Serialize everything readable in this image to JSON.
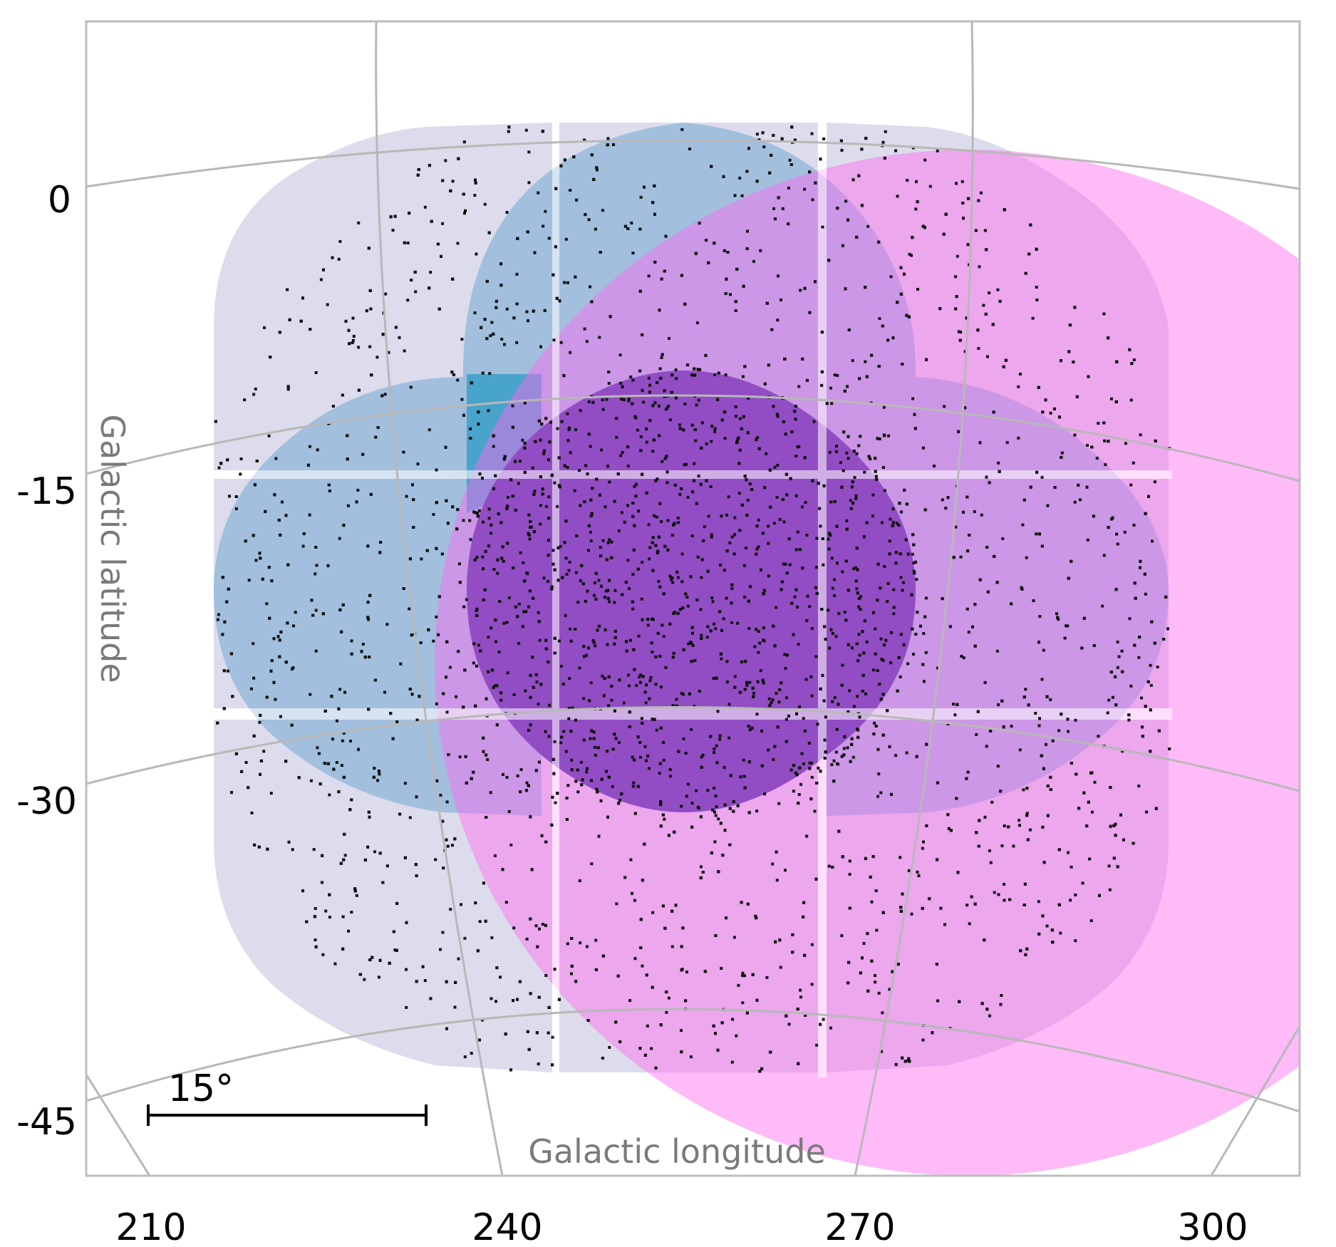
{
  "map": {
    "xlabel": "Galactic longitude",
    "ylabel": "Galactic latitude",
    "x_ticks": [
      "210",
      "240",
      "270",
      "300"
    ],
    "y_ticks": [
      "0",
      "-15",
      "-30",
      "-45"
    ],
    "scale_bar_label": "15°",
    "colors": {
      "grid": "#b8b8b8",
      "frame": "#bdbdbd",
      "tile_lavender": "#dcdcec",
      "blue_field": "#9cbcdc",
      "teal_overlap": "#3aa0c8",
      "magenta_field": "#ff66f0",
      "dark_core": "#3a3aa0",
      "sources": "#111111"
    }
  }
}
